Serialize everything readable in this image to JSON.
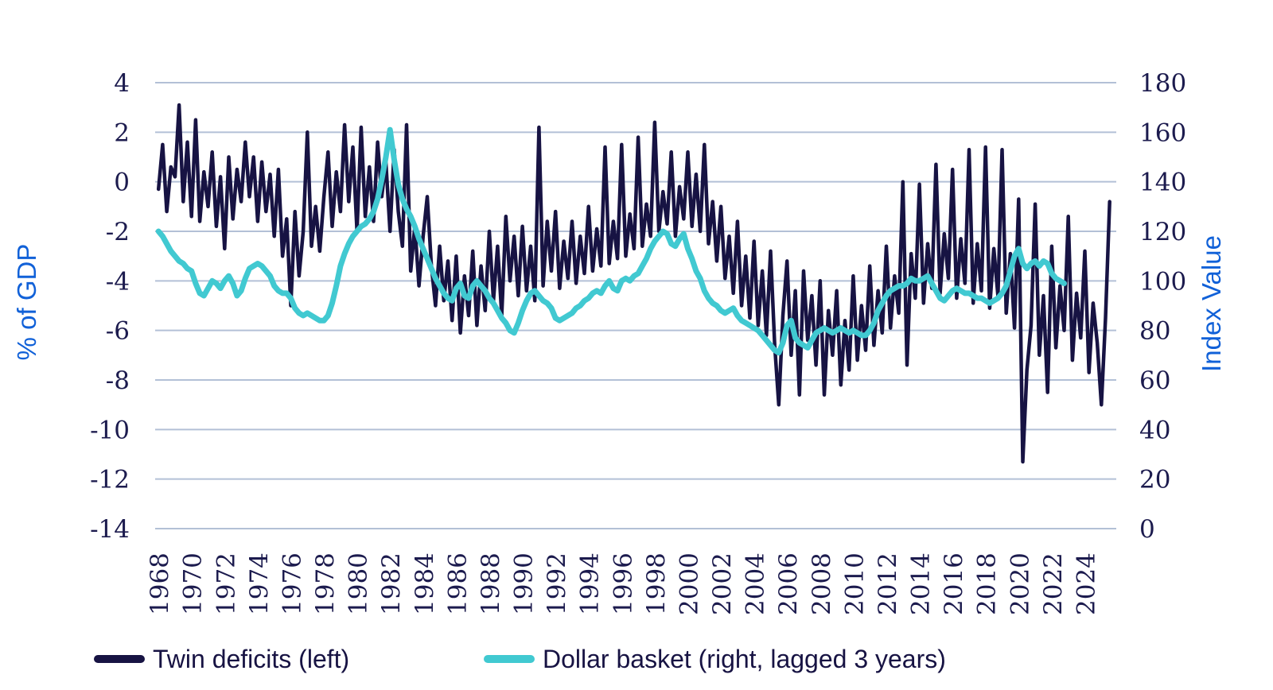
{
  "chart_data": {
    "type": "line",
    "title": "",
    "grid": true,
    "legend_position": "bottom",
    "left_axis": {
      "label": "% of GDP",
      "min": -14,
      "max": 4,
      "tick_step": 2
    },
    "right_axis": {
      "label": "Index Value",
      "min": 0,
      "max": 180,
      "tick_step": 20
    },
    "x_axis": {
      "min": 1967.8,
      "max": 2025.9,
      "tick_years": [
        1968,
        1970,
        1972,
        1974,
        1976,
        1978,
        1980,
        1982,
        1984,
        1986,
        1988,
        1990,
        1992,
        1994,
        1996,
        1998,
        2000,
        2002,
        2004,
        2006,
        2008,
        2010,
        2012,
        2014,
        2016,
        2018,
        2020,
        2022,
        2024
      ]
    },
    "series": [
      {
        "name": "Twin deficits (left)",
        "axis": "left",
        "color": "#171343",
        "stroke_width": 4.5,
        "x_start": 1968.0,
        "x_step": 0.25,
        "values": [
          -0.3,
          1.5,
          -1.2,
          0.6,
          0.2,
          3.1,
          -0.8,
          1.6,
          -1.4,
          2.5,
          -1.6,
          0.4,
          -1.0,
          1.2,
          -1.8,
          0.2,
          -2.7,
          1.0,
          -1.5,
          0.5,
          -0.8,
          1.6,
          -0.6,
          1.0,
          -1.6,
          0.8,
          -1.2,
          0.3,
          -2.2,
          0.5,
          -3.0,
          -1.5,
          -5.0,
          -1.2,
          -3.8,
          -2.0,
          2.0,
          -2.6,
          -1.0,
          -2.8,
          -0.6,
          1.2,
          -1.8,
          0.4,
          -1.2,
          2.3,
          -0.8,
          1.4,
          -2.0,
          2.2,
          -1.4,
          0.6,
          -1.6,
          1.6,
          -0.6,
          0.8,
          -2.0,
          1.3,
          -1.2,
          -2.6,
          2.3,
          -3.6,
          -1.8,
          -4.2,
          -2.2,
          -0.6,
          -3.4,
          -5.0,
          -2.6,
          -4.8,
          -3.2,
          -5.6,
          -3.0,
          -6.1,
          -3.8,
          -5.4,
          -2.8,
          -5.8,
          -3.4,
          -5.2,
          -2.0,
          -4.8,
          -2.6,
          -5.4,
          -1.4,
          -4.0,
          -2.2,
          -4.6,
          -1.8,
          -4.4,
          -2.6,
          -4.8,
          2.2,
          -4.2,
          -1.6,
          -3.6,
          -1.2,
          -4.3,
          -2.4,
          -3.9,
          -1.6,
          -4.1,
          -2.2,
          -3.7,
          -1.0,
          -3.6,
          -1.9,
          -3.4,
          1.4,
          -3.3,
          -1.6,
          -3.1,
          1.5,
          -3.0,
          -1.3,
          -2.7,
          1.8,
          -2.6,
          -0.9,
          -2.2,
          2.4,
          -2.0,
          -0.4,
          -1.7,
          1.2,
          -2.2,
          -0.2,
          -1.5,
          1.2,
          -1.8,
          0.3,
          -2.0,
          1.5,
          -2.5,
          -0.8,
          -3.2,
          -1.0,
          -3.9,
          -2.2,
          -4.5,
          -1.6,
          -5.0,
          -3.0,
          -5.5,
          -2.4,
          -5.8,
          -3.6,
          -6.2,
          -2.8,
          -6.6,
          -9.0,
          -5.4,
          -3.2,
          -7.0,
          -4.4,
          -8.6,
          -3.6,
          -6.4,
          -4.6,
          -7.4,
          -4.0,
          -8.6,
          -5.2,
          -7.0,
          -4.4,
          -8.2,
          -5.6,
          -7.6,
          -3.8,
          -7.2,
          -5.0,
          -6.8,
          -3.4,
          -6.6,
          -4.4,
          -6.1,
          -2.6,
          -5.9,
          -3.8,
          -5.3,
          0.0,
          -7.4,
          -2.9,
          -4.7,
          -0.1,
          -4.9,
          -2.5,
          -4.3,
          0.7,
          -4.5,
          -2.1,
          -3.9,
          0.5,
          -4.7,
          -2.3,
          -4.1,
          1.3,
          -4.9,
          -2.5,
          -4.4,
          1.4,
          -5.1,
          -2.7,
          -4.6,
          1.3,
          -5.3,
          -2.9,
          -5.9,
          -0.7,
          -11.3,
          -7.6,
          -5.8,
          -0.9,
          -7.0,
          -4.6,
          -8.5,
          -2.6,
          -6.7,
          -4.2,
          -6.0,
          -1.4,
          -7.2,
          -4.5,
          -6.3,
          -2.8,
          -7.7,
          -4.9,
          -6.5,
          -9.0,
          -5.5,
          -0.8
        ]
      },
      {
        "name": "Dollar basket (right, lagged 3 years)",
        "axis": "right",
        "color": "#41c9d1",
        "stroke_width": 7,
        "x_start": 1968.0,
        "x_step": 0.25,
        "values": [
          120,
          118,
          115,
          112,
          110,
          108,
          107,
          105,
          104,
          99,
          95,
          94,
          97,
          100,
          99,
          97,
          100,
          102,
          99,
          94,
          96,
          101,
          105,
          106,
          107,
          106,
          104,
          102,
          98,
          96,
          95,
          95,
          93,
          89,
          87,
          86,
          87,
          86,
          85,
          84,
          84,
          86,
          91,
          98,
          106,
          111,
          115,
          118,
          120,
          122,
          123,
          125,
          128,
          133,
          141,
          150,
          161,
          149,
          139,
          133,
          129,
          126,
          122,
          117,
          113,
          109,
          105,
          101,
          98,
          95,
          93,
          92,
          97,
          99,
          94,
          93,
          98,
          100,
          98,
          96,
          93,
          91,
          88,
          85,
          83,
          80,
          79,
          83,
          88,
          92,
          95,
          96,
          94,
          92,
          91,
          89,
          85,
          84,
          85,
          86,
          87,
          89,
          90,
          92,
          93,
          95,
          96,
          95,
          98,
          100,
          97,
          96,
          100,
          101,
          100,
          102,
          103,
          106,
          109,
          113,
          116,
          118,
          120,
          119,
          115,
          114,
          117,
          119,
          113,
          109,
          104,
          101,
          96,
          93,
          91,
          90,
          88,
          87,
          88,
          89,
          86,
          84,
          83,
          82,
          81,
          80,
          78,
          76,
          74,
          72,
          71,
          75,
          82,
          84,
          77,
          75,
          74,
          73,
          76,
          79,
          80,
          81,
          80,
          79,
          80,
          81,
          80,
          79,
          80,
          79,
          78,
          78,
          80,
          83,
          88,
          91,
          94,
          96,
          97,
          98,
          98,
          99,
          101,
          100,
          100,
          101,
          102,
          99,
          96,
          93,
          92,
          94,
          96,
          97,
          96,
          95,
          95,
          94,
          93,
          93,
          92,
          91,
          92,
          93,
          95,
          98,
          104,
          110,
          113,
          107,
          105,
          107,
          108,
          106,
          108,
          107,
          103,
          101,
          100,
          99
        ]
      }
    ],
    "style": {
      "gridline_color": "#b3c0d6",
      "tick_label_color": "#1c1b4e",
      "axis_title_color": "#1161d8",
      "background": "#ffffff"
    }
  },
  "legend": {
    "items": [
      {
        "label": "Twin deficits (left)",
        "color": "#171343"
      },
      {
        "label": "Dollar basket (right, lagged 3 years)",
        "color": "#41c9d1"
      }
    ]
  }
}
